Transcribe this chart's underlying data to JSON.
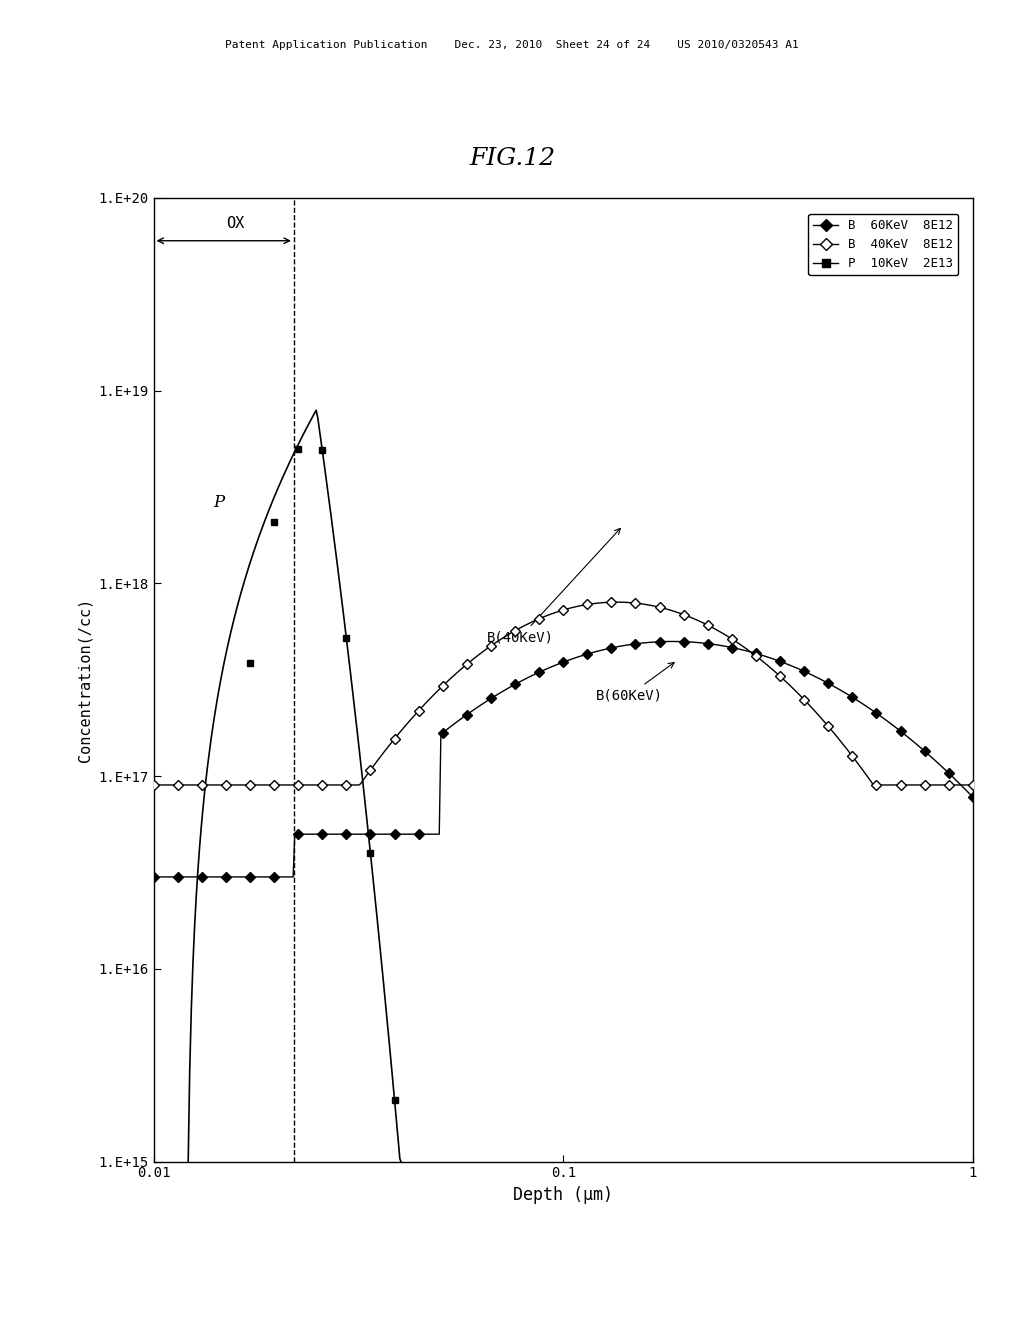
{
  "title": "FIG.12",
  "xlabel": "Depth (μm)",
  "ylabel": "Concentration(/cc)",
  "xlim_log": [
    -2,
    0
  ],
  "ylim_log": [
    15,
    20
  ],
  "background_color": "#ffffff",
  "ox_boundary": 0.022,
  "legend_entries": [
    "B  60KeV  8E12",
    "B  40KeV  8E12",
    "P  10KeV  2E13"
  ],
  "annotation_b40": "B(40KeV)",
  "annotation_b60": "B(60KeV)",
  "annotation_ox": "OX",
  "annotation_p": "P",
  "header_text": "Patent Application Publication    Dec. 23, 2010  Sheet 24 of 24    US 2010/0320543 A1"
}
